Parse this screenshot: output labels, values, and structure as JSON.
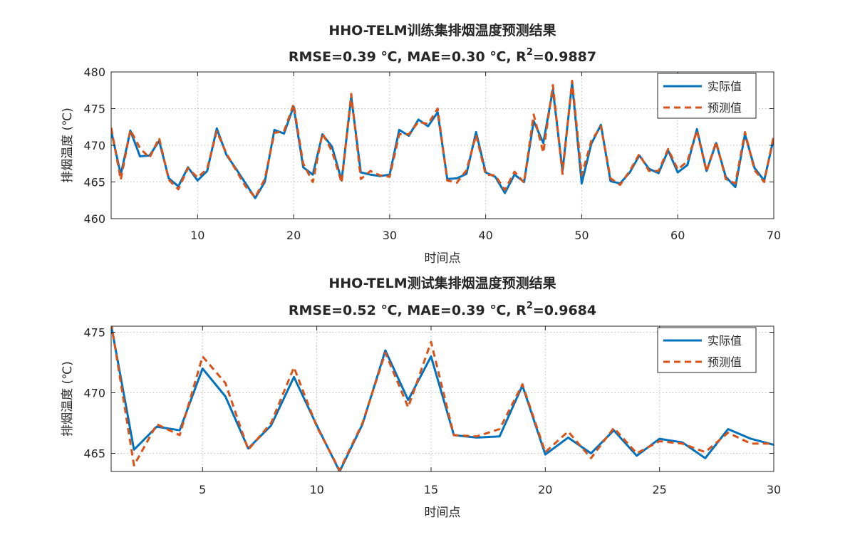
{
  "chart_data": [
    {
      "type": "line",
      "title": "HHO-TELM训练集排烟温度预测结果",
      "subtitle_prefix": "RMSE=0.39 ℃,  MAE=0.30 ℃,  R",
      "subtitle_sup": "2",
      "subtitle_suffix": "=0.9887",
      "xlabel": "时间点",
      "ylabel": "排烟温度 (℃)",
      "xlim": [
        1,
        70
      ],
      "ylim": [
        460,
        480
      ],
      "xticks": [
        10,
        20,
        30,
        40,
        50,
        60,
        70
      ],
      "yticks": [
        460,
        465,
        470,
        475,
        480
      ],
      "grid": true,
      "legend_position": "top-right",
      "x": [
        1,
        2,
        3,
        4,
        5,
        6,
        7,
        8,
        9,
        10,
        11,
        12,
        13,
        14,
        15,
        16,
        17,
        18,
        19,
        20,
        21,
        22,
        23,
        24,
        25,
        26,
        27,
        28,
        29,
        30,
        31,
        32,
        33,
        34,
        35,
        36,
        37,
        38,
        39,
        40,
        41,
        42,
        43,
        44,
        45,
        46,
        47,
        48,
        49,
        50,
        51,
        52,
        53,
        54,
        55,
        56,
        57,
        58,
        59,
        60,
        61,
        62,
        63,
        64,
        65,
        66,
        67,
        68,
        69,
        70
      ],
      "series": [
        {
          "name": "实际值",
          "color": "#0072BD",
          "style": "solid",
          "values": [
            472.0,
            466.0,
            472.0,
            468.5,
            468.6,
            470.6,
            465.5,
            464.4,
            467.0,
            465.2,
            466.5,
            472.3,
            468.7,
            466.8,
            464.8,
            462.8,
            465.0,
            472.1,
            471.6,
            475.3,
            467.0,
            466.0,
            471.5,
            469.8,
            465.2,
            476.6,
            466.3,
            466.0,
            465.8,
            466.0,
            472.1,
            471.3,
            473.5,
            472.6,
            474.5,
            465.4,
            465.5,
            466.1,
            471.8,
            466.3,
            465.7,
            463.5,
            466.0,
            465.0,
            473.3,
            470.3,
            477.6,
            466.5,
            478.5,
            464.8,
            470.2,
            472.8,
            465.1,
            464.8,
            466.3,
            468.6,
            466.8,
            466.2,
            469.3,
            466.3,
            467.3,
            472.2,
            466.5,
            470.3,
            465.7,
            464.3,
            471.5,
            466.9,
            465.2,
            471.0
          ]
        },
        {
          "name": "预测值",
          "color": "#D95319",
          "style": "dashed",
          "values": [
            472.4,
            465.3,
            472.1,
            469.6,
            468.3,
            471.0,
            465.3,
            464.0,
            466.9,
            465.6,
            466.8,
            471.9,
            468.9,
            466.6,
            464.4,
            462.9,
            465.4,
            471.7,
            471.9,
            475.6,
            467.5,
            465.0,
            471.6,
            469.2,
            464.9,
            477.0,
            465.4,
            466.5,
            465.9,
            465.7,
            471.5,
            471.5,
            473.2,
            472.9,
            475.0,
            465.2,
            464.9,
            466.6,
            471.4,
            466.0,
            465.9,
            463.9,
            466.4,
            464.9,
            474.2,
            469.0,
            478.2,
            466.1,
            478.8,
            465.9,
            470.6,
            472.6,
            465.5,
            464.6,
            466.5,
            468.8,
            466.5,
            466.5,
            469.5,
            466.7,
            467.8,
            472.0,
            466.4,
            470.5,
            465.4,
            464.8,
            471.8,
            466.6,
            465.0,
            471.3
          ]
        }
      ]
    },
    {
      "type": "line",
      "title": "HHO-TELM测试集排烟温度预测结果",
      "subtitle_prefix": "RMSE=0.52 ℃,  MAE=0.39 ℃,  R",
      "subtitle_sup": "2",
      "subtitle_suffix": "=0.9684",
      "xlabel": "时间点",
      "ylabel": "排烟温度 (℃)",
      "xlim": [
        1,
        30
      ],
      "ylim": [
        463.5,
        475.5
      ],
      "xticks": [
        5,
        10,
        15,
        20,
        25,
        30
      ],
      "yticks": [
        465,
        470,
        475
      ],
      "grid": true,
      "legend_position": "top-right",
      "x": [
        1,
        2,
        3,
        4,
        5,
        6,
        7,
        8,
        9,
        10,
        11,
        12,
        13,
        14,
        15,
        16,
        17,
        18,
        19,
        20,
        21,
        22,
        23,
        24,
        25,
        26,
        27,
        28,
        29,
        30
      ],
      "series": [
        {
          "name": "实际值",
          "color": "#0072BD",
          "style": "solid",
          "values": [
            475.6,
            465.3,
            467.2,
            466.9,
            472.0,
            469.7,
            465.4,
            467.3,
            471.3,
            467.3,
            463.5,
            467.4,
            473.5,
            469.4,
            473.0,
            466.5,
            466.3,
            466.4,
            470.6,
            464.9,
            466.3,
            465.0,
            466.9,
            464.8,
            466.2,
            465.9,
            464.6,
            467.0,
            466.2,
            465.7
          ]
        },
        {
          "name": "预测值",
          "color": "#D95319",
          "style": "dashed",
          "values": [
            475.8,
            464.0,
            467.4,
            466.5,
            473.0,
            470.8,
            465.3,
            467.5,
            472.1,
            467.2,
            463.6,
            467.5,
            473.3,
            468.8,
            474.2,
            466.5,
            466.4,
            467.0,
            470.7,
            465.1,
            466.8,
            464.6,
            467.1,
            465.0,
            466.0,
            465.8,
            465.1,
            466.7,
            465.8,
            465.8
          ]
        }
      ]
    }
  ]
}
